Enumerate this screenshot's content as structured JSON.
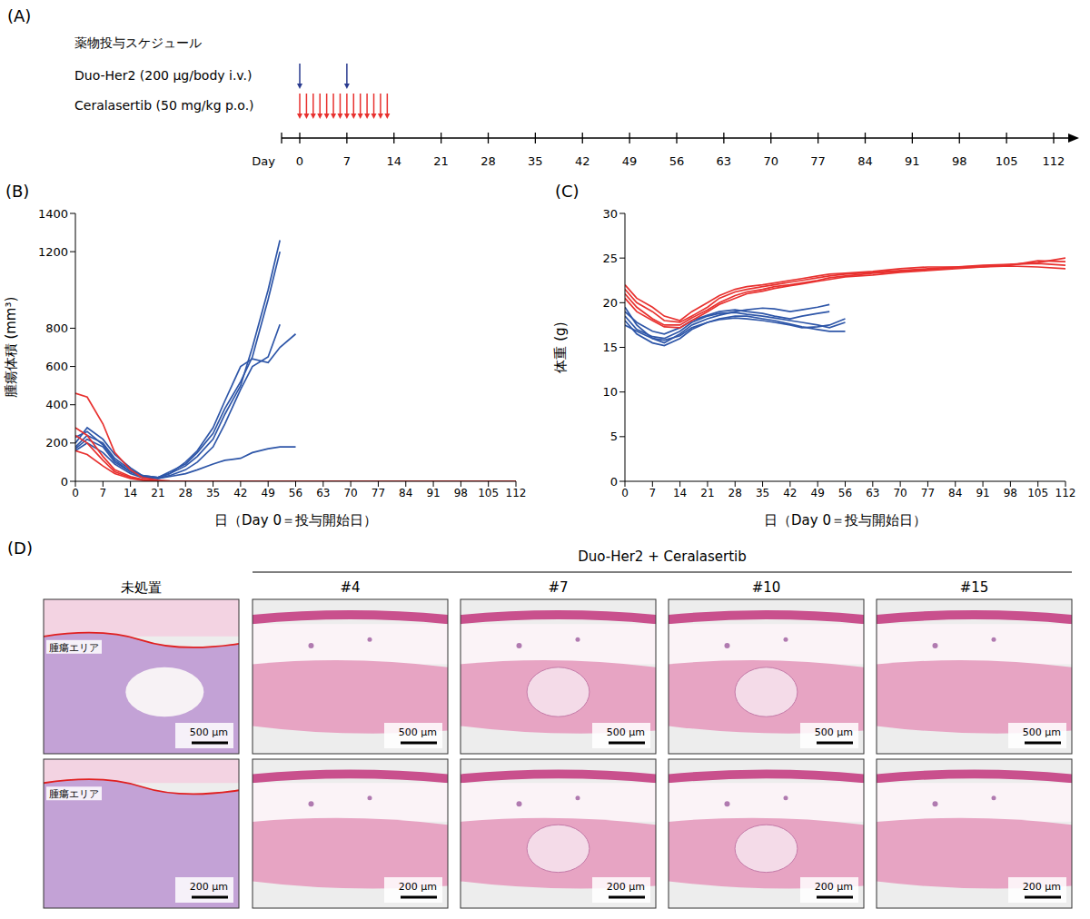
{
  "chart_data": [
    {
      "panel": "(B)",
      "type": "line",
      "x_label": "日（Day 0＝投与開始日）",
      "y_label": "腫瘍体積 (mm³)",
      "x": [
        0,
        3,
        7,
        10,
        14,
        17,
        21,
        24,
        28,
        31,
        35,
        38,
        42,
        45,
        49,
        52,
        56,
        63,
        70,
        77,
        84,
        91,
        98,
        105,
        112
      ],
      "xlim": [
        0,
        112
      ],
      "xticks": [
        0,
        7,
        14,
        21,
        28,
        35,
        42,
        49,
        56,
        63,
        70,
        77,
        84,
        91,
        98,
        105,
        112
      ],
      "ylim": [
        0,
        1400
      ],
      "yticks": [
        0,
        200,
        400,
        600,
        800,
        1200,
        1400
      ],
      "series": [
        {
          "color": "#2e56a8",
          "values": [
            180,
            240,
            200,
            120,
            60,
            30,
            20,
            40,
            80,
            130,
            220,
            350,
            500,
            700,
            1000,
            1260,
            null,
            null,
            null,
            null,
            null,
            null,
            null,
            null,
            null
          ]
        },
        {
          "color": "#2e56a8",
          "values": [
            200,
            280,
            220,
            140,
            70,
            30,
            20,
            50,
            90,
            150,
            250,
            380,
            520,
            650,
            950,
            1200,
            null,
            null,
            null,
            null,
            null,
            null,
            null,
            null,
            null
          ]
        },
        {
          "color": "#2e56a8",
          "values": [
            170,
            220,
            180,
            100,
            50,
            25,
            20,
            40,
            100,
            160,
            280,
            420,
            600,
            640,
            620,
            700,
            770,
            null,
            null,
            null,
            null,
            null,
            null,
            null,
            null
          ]
        },
        {
          "color": "#2e56a8",
          "values": [
            230,
            260,
            190,
            110,
            50,
            25,
            15,
            30,
            60,
            100,
            180,
            300,
            480,
            600,
            650,
            820,
            null,
            null,
            null,
            null,
            null,
            null,
            null,
            null,
            null
          ]
        },
        {
          "color": "#2e56a8",
          "values": [
            160,
            200,
            150,
            90,
            40,
            20,
            15,
            25,
            40,
            60,
            90,
            110,
            120,
            150,
            170,
            180,
            180,
            null,
            null,
            null,
            null,
            null,
            null,
            null,
            null
          ]
        },
        {
          "color": "#e8312f",
          "values": [
            460,
            440,
            300,
            150,
            60,
            20,
            5,
            2,
            0,
            0,
            0,
            0,
            0,
            0,
            0,
            0,
            0,
            0,
            0,
            0,
            0,
            0,
            0,
            0,
            0
          ]
        },
        {
          "color": "#e8312f",
          "values": [
            280,
            240,
            130,
            60,
            25,
            10,
            3,
            0,
            0,
            0,
            0,
            0,
            0,
            0,
            0,
            0,
            0,
            0,
            0,
            0,
            0,
            0,
            0,
            0,
            0
          ]
        },
        {
          "color": "#e8312f",
          "values": [
            240,
            200,
            110,
            50,
            20,
            8,
            2,
            0,
            0,
            0,
            0,
            0,
            0,
            0,
            0,
            0,
            0,
            0,
            0,
            0,
            0,
            0,
            0,
            0,
            0
          ]
        },
        {
          "color": "#e8312f",
          "values": [
            160,
            140,
            80,
            40,
            15,
            5,
            0,
            0,
            0,
            0,
            0,
            0,
            0,
            0,
            0,
            0,
            0,
            0,
            0,
            0,
            0,
            0,
            0,
            0,
            0
          ]
        }
      ]
    },
    {
      "panel": "(C)",
      "type": "line",
      "x_label": "日（Day 0＝投与開始日）",
      "y_label": "体重 (g)",
      "x": [
        0,
        3,
        7,
        10,
        14,
        17,
        21,
        24,
        28,
        31,
        35,
        38,
        42,
        45,
        49,
        52,
        56,
        63,
        70,
        77,
        84,
        91,
        98,
        105,
        112
      ],
      "xlim": [
        0,
        112
      ],
      "xticks": [
        0,
        7,
        14,
        21,
        28,
        35,
        42,
        49,
        56,
        63,
        70,
        77,
        84,
        91,
        98,
        105,
        112
      ],
      "ylim": [
        0,
        30
      ],
      "yticks": [
        0,
        5,
        10,
        15,
        20,
        25,
        30
      ],
      "series": [
        {
          "color": "#2e56a8",
          "values": [
            19.5,
            17.5,
            16,
            15.5,
            16.5,
            17.5,
            18.2,
            18.6,
            19,
            19.2,
            19.4,
            19.3,
            19,
            19.2,
            19.5,
            19.8,
            null,
            null,
            null,
            null,
            null,
            null,
            null,
            null,
            null
          ]
        },
        {
          "color": "#2e56a8",
          "values": [
            18.5,
            17,
            16.2,
            16,
            16.8,
            17.8,
            18.5,
            18.8,
            18.9,
            18.7,
            18.5,
            18.3,
            18,
            17.8,
            17.5,
            17.2,
            17.8,
            null,
            null,
            null,
            null,
            null,
            null,
            null,
            null
          ]
        },
        {
          "color": "#2e56a8",
          "values": [
            18,
            16.5,
            15.5,
            15.2,
            16,
            17,
            17.8,
            18.2,
            18.5,
            18.5,
            18.2,
            18,
            17.6,
            17.3,
            17,
            16.8,
            16.8,
            null,
            null,
            null,
            null,
            null,
            null,
            null,
            null
          ]
        },
        {
          "color": "#2e56a8",
          "values": [
            19,
            17.8,
            16.8,
            16.5,
            17.2,
            18,
            18.6,
            19,
            19.2,
            19,
            18.8,
            18.5,
            18.2,
            18.5,
            18.8,
            19,
            null,
            null,
            null,
            null,
            null,
            null,
            null,
            null,
            null
          ]
        },
        {
          "color": "#2e56a8",
          "values": [
            17.5,
            16.8,
            16,
            15.8,
            16.3,
            17.2,
            17.8,
            18.1,
            18.3,
            18.2,
            18,
            17.8,
            17.5,
            17.2,
            17.3,
            17.5,
            18.2,
            null,
            null,
            null,
            null,
            null,
            null,
            null,
            null
          ]
        },
        {
          "color": "#e8312f",
          "values": [
            22,
            20.5,
            19.5,
            18.5,
            18,
            19,
            20,
            20.8,
            21.5,
            21.8,
            22,
            22.2,
            22.5,
            22.7,
            23,
            23.2,
            23.3,
            23.5,
            23.8,
            24,
            24,
            24.2,
            24.3,
            24.5,
            25
          ]
        },
        {
          "color": "#e8312f",
          "values": [
            21.5,
            20,
            19,
            18,
            17.8,
            18.5,
            19.5,
            20.5,
            21.2,
            21.5,
            21.8,
            22,
            22.3,
            22.5,
            22.8,
            23,
            23.2,
            23.4,
            23.6,
            23.8,
            24,
            24.1,
            24.2,
            24.7,
            24.6
          ]
        },
        {
          "color": "#e8312f",
          "values": [
            21,
            19.5,
            18.2,
            17.5,
            17.5,
            18.3,
            19.2,
            20,
            20.8,
            21.2,
            21.5,
            21.8,
            22,
            22.2,
            22.5,
            22.8,
            23,
            23.3,
            23.5,
            23.7,
            23.9,
            24,
            24.1,
            24,
            23.8
          ]
        },
        {
          "color": "#e8312f",
          "values": [
            20.5,
            19,
            18,
            17.3,
            17.2,
            18,
            19,
            19.8,
            20.5,
            21,
            21.3,
            21.6,
            21.9,
            22.1,
            22.4,
            22.6,
            22.9,
            23.1,
            23.4,
            23.6,
            23.8,
            24,
            24.3,
            24.4,
            24.2
          ]
        }
      ]
    }
  ],
  "schedule": {
    "panel": "(A)",
    "title": "薬物投与スケジュール",
    "axis_label": "Day",
    "xlim": [
      0,
      112
    ],
    "xticks": [
      0,
      7,
      14,
      21,
      28,
      35,
      42,
      49,
      56,
      63,
      70,
      77,
      84,
      91,
      98,
      105,
      112
    ],
    "treatments": [
      {
        "label": "Duo-Her2 (200 μg/body i.v.)",
        "days": [
          0,
          7
        ],
        "color": "#2a3b8f"
      },
      {
        "label": "Ceralasertib (50 mg/kg p.o.)",
        "days": [
          0,
          1,
          2,
          3,
          4,
          5,
          6,
          7,
          8,
          9,
          10,
          11,
          12,
          13
        ],
        "color": "#e8312f"
      }
    ]
  },
  "histology": {
    "panel": "(D)",
    "group_label": "Duo-Her2 + Ceralasertib",
    "columns": [
      "未処置",
      "#4",
      "#7",
      "#10",
      "#15"
    ],
    "scale_bars": [
      "500 μm",
      "200 μm"
    ],
    "annotation": "腫瘍エリア"
  }
}
